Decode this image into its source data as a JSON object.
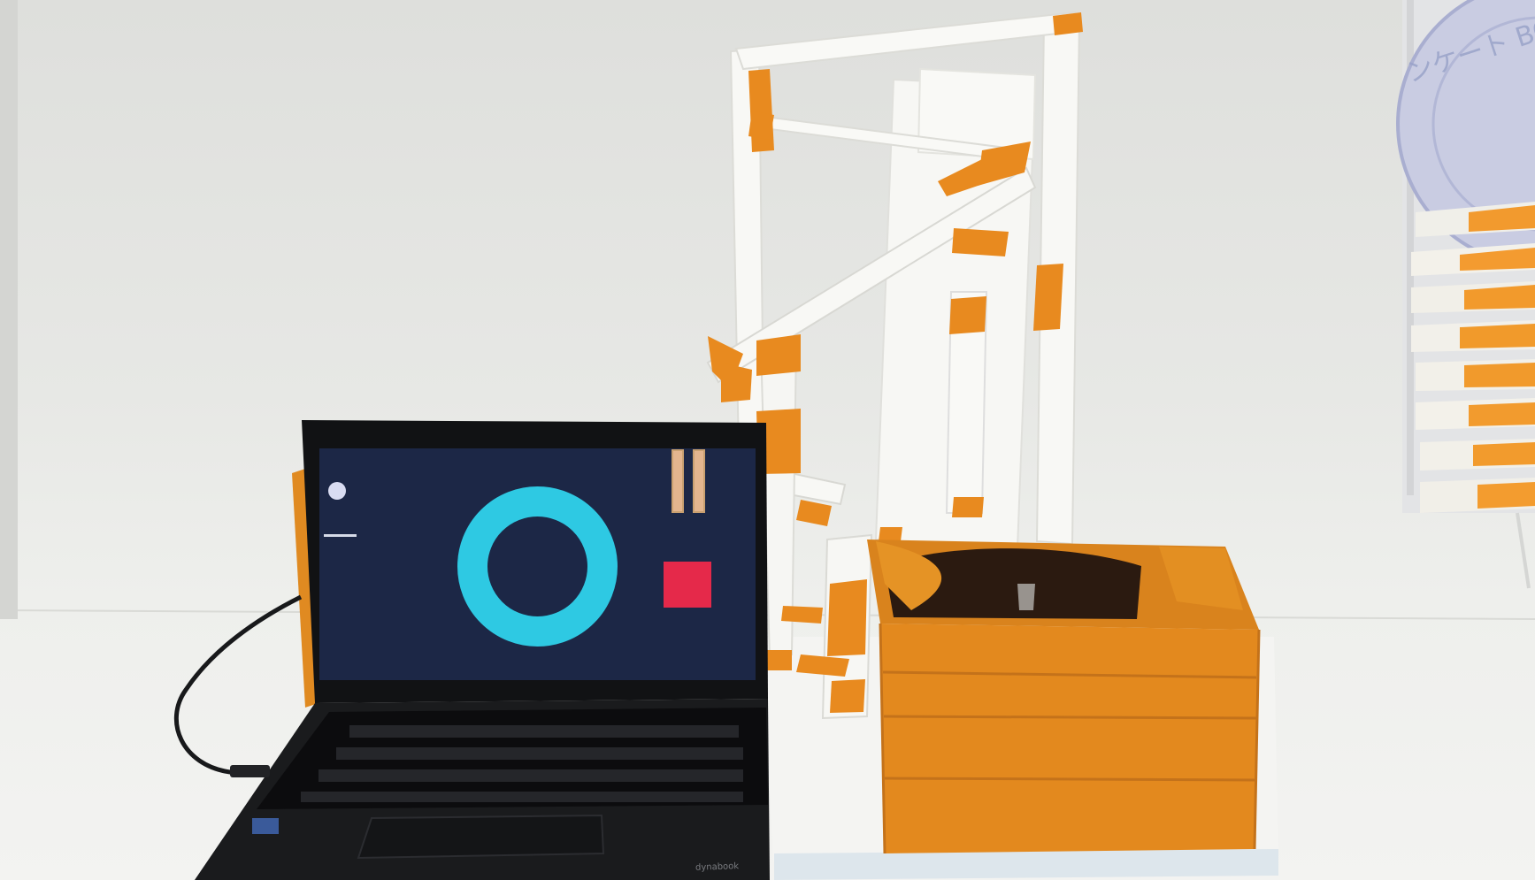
{
  "scene": {
    "background_sign_text": "ンケート BO",
    "laptop_brand_text": "dynabook"
  },
  "screen_ui": {
    "background_color": "#1c2746",
    "icons": [
      "record-dot-icon",
      "dash-icon",
      "ring-icon",
      "pause-icon",
      "stop-icon"
    ],
    "colors": {
      "ring": "#2ec9e3",
      "pause": "#e3b58e",
      "stop": "#e5294a",
      "dot": "#d9dcf2"
    }
  },
  "colors": {
    "tape_orange": "#e8891f",
    "paper_white": "#f5f5f2",
    "backdrop": "#e4e5e2"
  }
}
